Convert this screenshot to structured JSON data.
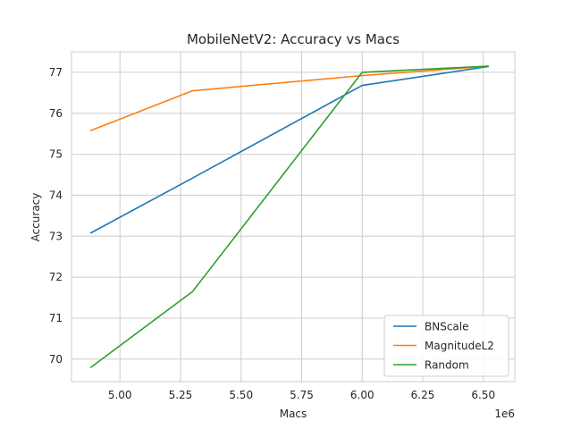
{
  "chart_data": {
    "type": "line",
    "title": "MobileNetV2: Accuracy vs Macs",
    "xlabel": "Macs",
    "ylabel": "Accuracy",
    "x_scale_label": "1e6",
    "x_scale_factor": 1000000,
    "xlim": [
      4800000,
      6630000
    ],
    "ylim": [
      69.45,
      77.5
    ],
    "xticks": [
      5000000,
      5250000,
      5500000,
      5750000,
      6000000,
      6250000,
      6500000
    ],
    "xtick_labels": [
      "5.00",
      "5.25",
      "5.50",
      "5.75",
      "6.00",
      "6.25",
      "6.50"
    ],
    "yticks": [
      70,
      71,
      72,
      73,
      74,
      75,
      76,
      77
    ],
    "ytick_labels": [
      "70",
      "71",
      "72",
      "73",
      "74",
      "75",
      "76",
      "77"
    ],
    "grid": true,
    "legend_position": "lower-right",
    "series": [
      {
        "name": "BNScale",
        "color": "#1f77b4",
        "x": [
          4880000,
          5300000,
          6000000,
          6520000
        ],
        "y": [
          73.08,
          74.42,
          76.68,
          77.14
        ]
      },
      {
        "name": "MagnitudeL2",
        "color": "#ff7f0e",
        "x": [
          4880000,
          5300000,
          6000000,
          6520000
        ],
        "y": [
          75.58,
          76.55,
          76.92,
          77.15
        ]
      },
      {
        "name": "Random",
        "color": "#2ca02c",
        "x": [
          4880000,
          5300000,
          6000000,
          6520000
        ],
        "y": [
          69.8,
          71.65,
          77.0,
          77.15
        ]
      }
    ]
  }
}
